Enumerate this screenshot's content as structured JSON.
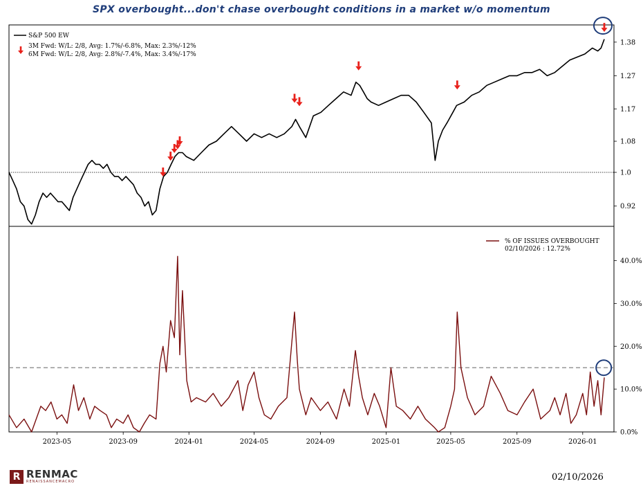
{
  "title": "SPX overbought...don't chase overbought conditions in a market w/o momentum",
  "footer": {
    "logo_mark": "R",
    "logo_name": "RENMAC",
    "logo_sub": "RENAISSANCEMACRO",
    "date": "02/10/2026"
  },
  "chart_data": [
    {
      "type": "line",
      "series": [
        {
          "name": "S&P 500 EW",
          "color": "#000000",
          "x": [
            "2023-02-01",
            "2023-02-08",
            "2023-02-15",
            "2023-02-22",
            "2023-03-01",
            "2023-03-08",
            "2023-03-15",
            "2023-03-22",
            "2023-03-29",
            "2023-04-05",
            "2023-04-12",
            "2023-04-19",
            "2023-04-26",
            "2023-05-03",
            "2023-05-10",
            "2023-05-17",
            "2023-05-24",
            "2023-05-31",
            "2023-06-07",
            "2023-06-14",
            "2023-06-21",
            "2023-06-28",
            "2023-07-05",
            "2023-07-12",
            "2023-07-19",
            "2023-07-26",
            "2023-08-02",
            "2023-08-09",
            "2023-08-16",
            "2023-08-23",
            "2023-08-30",
            "2023-09-06",
            "2023-09-13",
            "2023-09-20",
            "2023-09-27",
            "2023-10-04",
            "2023-10-11",
            "2023-10-18",
            "2023-10-25",
            "2023-11-01",
            "2023-11-08",
            "2023-11-15",
            "2023-11-22",
            "2023-11-29",
            "2023-12-06",
            "2023-12-13",
            "2023-12-20",
            "2023-12-27",
            "2024-01-10",
            "2024-01-24",
            "2024-02-07",
            "2024-02-21",
            "2024-03-06",
            "2024-03-20",
            "2024-04-03",
            "2024-04-17",
            "2024-05-01",
            "2024-05-15",
            "2024-05-29",
            "2024-06-12",
            "2024-06-26",
            "2024-07-10",
            "2024-07-17",
            "2024-07-24",
            "2024-08-05",
            "2024-08-19",
            "2024-09-02",
            "2024-09-16",
            "2024-09-30",
            "2024-10-14",
            "2024-10-28",
            "2024-11-06",
            "2024-11-13",
            "2024-11-20",
            "2024-11-27",
            "2024-12-04",
            "2024-12-18",
            "2025-01-01",
            "2025-01-15",
            "2025-01-29",
            "2025-02-12",
            "2025-02-26",
            "2025-03-12",
            "2025-03-26",
            "2025-04-02",
            "2025-04-08",
            "2025-04-16",
            "2025-04-24",
            "2025-05-05",
            "2025-05-12",
            "2025-05-26",
            "2025-06-09",
            "2025-06-23",
            "2025-07-07",
            "2025-07-21",
            "2025-08-04",
            "2025-08-18",
            "2025-09-01",
            "2025-09-15",
            "2025-09-29",
            "2025-10-13",
            "2025-10-27",
            "2025-11-10",
            "2025-11-24",
            "2025-12-08",
            "2025-12-22",
            "2026-01-05",
            "2026-01-19",
            "2026-01-29",
            "2026-02-04",
            "2026-02-10"
          ],
          "values": [
            1.0,
            0.98,
            0.96,
            0.93,
            0.92,
            0.89,
            0.88,
            0.9,
            0.93,
            0.95,
            0.94,
            0.95,
            0.94,
            0.93,
            0.93,
            0.92,
            0.91,
            0.94,
            0.96,
            0.98,
            1.0,
            1.02,
            1.03,
            1.02,
            1.02,
            1.01,
            1.02,
            1.0,
            0.99,
            0.99,
            0.98,
            0.99,
            0.98,
            0.97,
            0.95,
            0.94,
            0.92,
            0.93,
            0.9,
            0.91,
            0.96,
            0.99,
            1.0,
            1.02,
            1.04,
            1.05,
            1.05,
            1.04,
            1.03,
            1.05,
            1.07,
            1.08,
            1.1,
            1.12,
            1.1,
            1.08,
            1.1,
            1.09,
            1.1,
            1.09,
            1.1,
            1.12,
            1.14,
            1.12,
            1.09,
            1.15,
            1.16,
            1.18,
            1.2,
            1.22,
            1.21,
            1.25,
            1.24,
            1.22,
            1.2,
            1.19,
            1.18,
            1.19,
            1.2,
            1.21,
            1.21,
            1.19,
            1.16,
            1.13,
            1.03,
            1.08,
            1.11,
            1.13,
            1.16,
            1.18,
            1.19,
            1.21,
            1.22,
            1.24,
            1.25,
            1.26,
            1.27,
            1.27,
            1.28,
            1.28,
            1.29,
            1.27,
            1.28,
            1.3,
            1.32,
            1.33,
            1.34,
            1.36,
            1.35,
            1.36,
            1.39
          ]
        }
      ],
      "legend": [
        {
          "label": "S&P 500 EW",
          "marker": "line"
        },
        {
          "label": "3M Fwd: W/L: 2/8, Avg: 1.7%/-6.8%, Max: 2.3%/-12%",
          "marker": "none"
        },
        {
          "label": "6M Fwd: W/L: 2/8, Avg: 2.8%/-7.4%, Max: 3.4%/-17%",
          "marker": "arrow"
        }
      ],
      "signals": {
        "marker": "down-arrow-icon",
        "color": "#e8201a",
        "points": [
          {
            "x": "2023-11-14",
            "y": 1.0
          },
          {
            "x": "2023-11-28",
            "y": 1.04
          },
          {
            "x": "2023-12-05",
            "y": 1.06
          },
          {
            "x": "2023-12-11",
            "y": 1.07
          },
          {
            "x": "2023-12-15",
            "y": 1.08
          },
          {
            "x": "2024-07-15",
            "y": 1.2
          },
          {
            "x": "2024-07-24",
            "y": 1.19
          },
          {
            "x": "2024-11-11",
            "y": 1.3
          },
          {
            "x": "2025-05-13",
            "y": 1.24
          },
          {
            "x": "2026-02-10",
            "y": 1.43
          }
        ]
      },
      "reference_line": {
        "y": 1.0,
        "style": "dotted",
        "color": "#000000"
      },
      "highlight_circle": {
        "x": "2026-02-10",
        "y": 1.43,
        "color": "#1f3d7a"
      },
      "yticks": [
        "0.92",
        "1.0",
        "1.08",
        "1.17",
        "1.27",
        "1.38"
      ],
      "y_scale": "log",
      "ylim": [
        0.875,
        1.44
      ],
      "xlim": [
        "2023-02-01",
        "2026-02-28"
      ],
      "xlabel": "",
      "ylabel": "",
      "grid": false,
      "legend_position": "top-left",
      "title": ""
    },
    {
      "type": "line",
      "series": [
        {
          "name": "% OF ISSUES OVERBOUGHT",
          "color": "#7a0f0f",
          "x": [
            "2023-02-01",
            "2023-02-15",
            "2023-03-01",
            "2023-03-15",
            "2023-04-01",
            "2023-04-10",
            "2023-04-20",
            "2023-05-01",
            "2023-05-10",
            "2023-05-20",
            "2023-06-01",
            "2023-06-10",
            "2023-06-20",
            "2023-07-01",
            "2023-07-10",
            "2023-07-20",
            "2023-08-01",
            "2023-08-10",
            "2023-08-20",
            "2023-09-01",
            "2023-09-10",
            "2023-09-20",
            "2023-10-01",
            "2023-10-10",
            "2023-10-20",
            "2023-11-01",
            "2023-11-08",
            "2023-11-14",
            "2023-11-20",
            "2023-11-28",
            "2023-12-05",
            "2023-12-11",
            "2023-12-15",
            "2023-12-20",
            "2023-12-28",
            "2024-01-05",
            "2024-01-15",
            "2024-02-01",
            "2024-02-15",
            "2024-03-01",
            "2024-03-15",
            "2024-04-01",
            "2024-04-10",
            "2024-04-20",
            "2024-05-01",
            "2024-05-10",
            "2024-05-20",
            "2024-06-01",
            "2024-06-15",
            "2024-07-01",
            "2024-07-10",
            "2024-07-15",
            "2024-07-20",
            "2024-07-24",
            "2024-08-01",
            "2024-08-05",
            "2024-08-15",
            "2024-09-01",
            "2024-09-15",
            "2024-10-01",
            "2024-10-15",
            "2024-10-25",
            "2024-11-05",
            "2024-11-11",
            "2024-11-18",
            "2024-11-28",
            "2024-12-10",
            "2024-12-20",
            "2025-01-01",
            "2025-01-10",
            "2025-01-20",
            "2025-02-01",
            "2025-02-15",
            "2025-03-01",
            "2025-03-15",
            "2025-04-01",
            "2025-04-08",
            "2025-04-20",
            "2025-05-01",
            "2025-05-08",
            "2025-05-13",
            "2025-05-20",
            "2025-06-01",
            "2025-06-15",
            "2025-07-01",
            "2025-07-15",
            "2025-08-01",
            "2025-08-15",
            "2025-09-01",
            "2025-09-15",
            "2025-10-01",
            "2025-10-15",
            "2025-11-01",
            "2025-11-10",
            "2025-11-20",
            "2025-12-01",
            "2025-12-10",
            "2025-12-20",
            "2026-01-01",
            "2026-01-08",
            "2026-01-15",
            "2026-01-22",
            "2026-01-29",
            "2026-02-04",
            "2026-02-10"
          ],
          "values": [
            4,
            1,
            3,
            0,
            6,
            5,
            7,
            3,
            4,
            2,
            11,
            5,
            8,
            3,
            6,
            5,
            4,
            1,
            3,
            2,
            4,
            1,
            0,
            2,
            4,
            3,
            16,
            20,
            14,
            26,
            22,
            41,
            18,
            33,
            12,
            7,
            8,
            7,
            9,
            6,
            8,
            12,
            5,
            11,
            14,
            8,
            4,
            3,
            6,
            8,
            21,
            28,
            17,
            10,
            6,
            4,
            8,
            5,
            7,
            3,
            10,
            6,
            19,
            13,
            8,
            4,
            9,
            6,
            1,
            15,
            6,
            5,
            3,
            6,
            3,
            1,
            0,
            1,
            6,
            10,
            28,
            15,
            8,
            4,
            6,
            13,
            9,
            5,
            4,
            7,
            10,
            3,
            5,
            8,
            4,
            9,
            2,
            4,
            9,
            4,
            14,
            6,
            12,
            4,
            12.72
          ],
          "annotation": "02/10/2026 : 12.72%"
        }
      ],
      "legend": [
        {
          "label": "% OF ISSUES OVERBOUGHT",
          "sublabel": "02/10/2026 : 12.72%",
          "marker": "line"
        }
      ],
      "reference_line": {
        "y": 15,
        "style": "dashed",
        "color": "#8c8c8c"
      },
      "highlight_circle": {
        "x": "2026-02-09",
        "y": 15,
        "color": "#1f3d7a"
      },
      "yticks": [
        "0.0%",
        "10.0%",
        "20.0%",
        "30.0%",
        "40.0%"
      ],
      "ylim": [
        0,
        48
      ],
      "xticks": [
        "2023-05",
        "2023-09",
        "2024-01",
        "2024-05",
        "2024-09",
        "2025-01",
        "2025-05",
        "2025-09",
        "2026-01"
      ],
      "xlim": [
        "2023-02-01",
        "2026-02-28"
      ],
      "xlabel": "",
      "ylabel": "",
      "grid": false,
      "legend_position": "top-right",
      "title": ""
    }
  ]
}
